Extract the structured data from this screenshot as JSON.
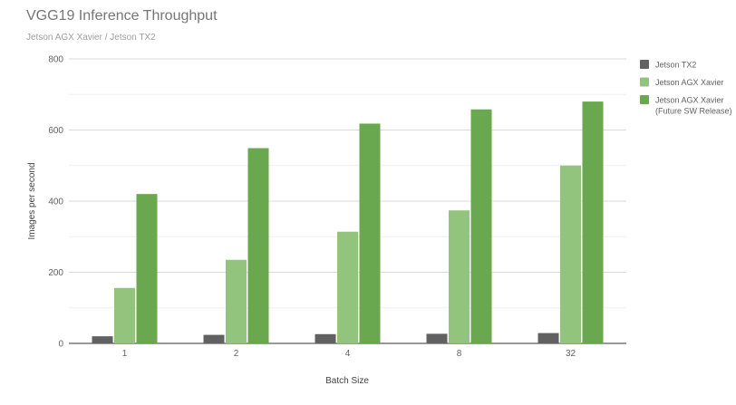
{
  "chart_data": {
    "type": "bar",
    "title": "VGG19 Inference Throughput",
    "subtitle": "Jetson AGX Xavier / Jetson TX2",
    "xlabel": "Batch Size",
    "ylabel": "Images per second",
    "ylim": [
      0,
      800
    ],
    "yticks": [
      0,
      200,
      400,
      600,
      800
    ],
    "grid": true,
    "legend_position": "right",
    "categories": [
      "1",
      "2",
      "4",
      "8",
      "32"
    ],
    "series": [
      {
        "name": "Jetson TX2",
        "color": "#616161",
        "values": [
          20,
          24,
          26,
          27,
          29
        ]
      },
      {
        "name": "Jetson AGX Xavier",
        "color": "#93c47d",
        "values": [
          156,
          235,
          314,
          374,
          500
        ]
      },
      {
        "name": "Jetson AGX Xavier\n(Future SW Release)",
        "legend_lines": [
          "Jetson AGX Xavier",
          "(Future SW Release)"
        ],
        "color": "#6aa84f",
        "values": [
          420,
          549,
          618,
          658,
          680
        ]
      }
    ]
  }
}
